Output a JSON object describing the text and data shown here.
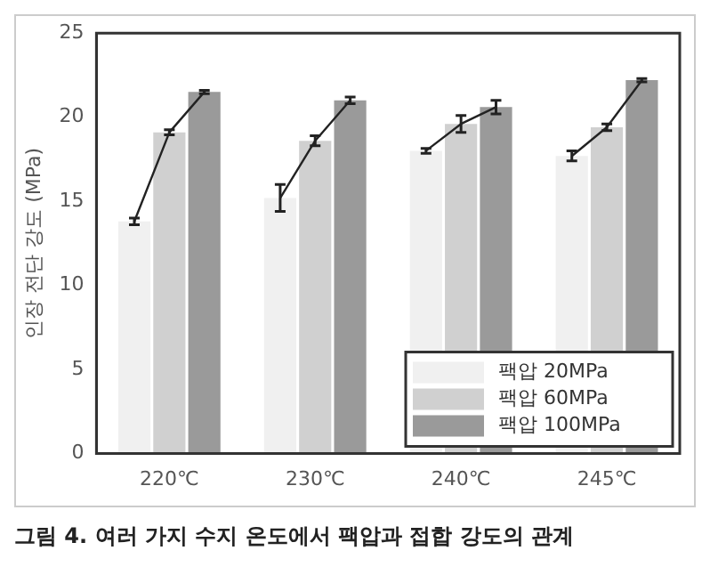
{
  "chart_data": {
    "type": "bar",
    "ylabel": "인장 전단 강도 (MPa)",
    "categories": [
      "220℃",
      "230℃",
      "240℃",
      "245℃"
    ],
    "series": [
      {
        "name": "팩압 20MPa",
        "color": "#f0f0f0",
        "values": [
          13.8,
          15.2,
          18.0,
          17.7
        ],
        "errors": [
          0.2,
          0.8,
          0.15,
          0.3
        ]
      },
      {
        "name": "팩압 60MPa",
        "color": "#d0d0d0",
        "values": [
          19.1,
          18.6,
          19.6,
          19.4
        ],
        "errors": [
          0.15,
          0.3,
          0.5,
          0.2
        ]
      },
      {
        "name": "팩압 100MPa",
        "color": "#9a9a9a",
        "values": [
          21.5,
          21.0,
          20.6,
          22.2
        ],
        "errors": [
          0.1,
          0.2,
          0.4,
          0.1
        ]
      }
    ],
    "ylim": [
      0,
      25
    ],
    "yticks": [
      0,
      5,
      10,
      15,
      20,
      25
    ],
    "grid": false,
    "legend": "bottom right",
    "annotations": [
      "그림 4. 여러 가지 수지 온도에서 팩압과 접합 강도의 관계"
    ]
  }
}
